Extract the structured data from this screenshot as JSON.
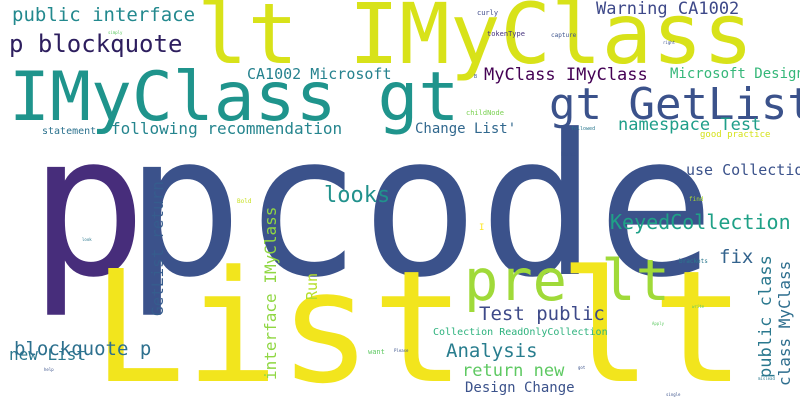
{
  "colors": {
    "background": "#ffffff",
    "palette": [
      "#440154",
      "#3b528b",
      "#21918c",
      "#5ec962",
      "#fde725"
    ]
  },
  "words": [
    {
      "text": "pcode",
      "color": "#3b528b"
    },
    {
      "text": "p",
      "color": "#472d7b"
    },
    {
      "text": "List lt",
      "color": "#f2e51d"
    },
    {
      "text": "lt IMyClass",
      "color": "#d8e219"
    },
    {
      "text": "IMyClass gt",
      "color": "#1f948c"
    },
    {
      "text": "gt GetList",
      "color": "#3b528b"
    },
    {
      "text": "pre lt",
      "color": "#a0da39"
    },
    {
      "text": "p blockquote",
      "color": "#2d1e5e"
    },
    {
      "text": "public interface",
      "color": "#23898e"
    },
    {
      "text": "Warning CA1002",
      "color": "#3e4989"
    },
    {
      "text": "CA1002 Microsoft",
      "color": "#26828e"
    },
    {
      "text": "MyClass IMyClass",
      "color": "#440154"
    },
    {
      "text": "Microsoft Design",
      "color": "#35b779"
    },
    {
      "text": "namespace Test",
      "color": "#1f9e89"
    },
    {
      "text": "following recommendation",
      "color": "#25858e"
    },
    {
      "text": "Change List'",
      "color": "#31688e"
    },
    {
      "text": "looks",
      "color": "#21918c"
    },
    {
      "text": "use Collection",
      "color": "#3b528b"
    },
    {
      "text": "KeyedCollection",
      "color": "#1fa187"
    },
    {
      "text": "fix",
      "color": "#33638d"
    },
    {
      "text": "Test public",
      "color": "#3e4a89"
    },
    {
      "text": "Analysis",
      "color": "#287d8e"
    },
    {
      "text": "return new",
      "color": "#5ec962"
    },
    {
      "text": "new List",
      "color": "#2a788e"
    },
    {
      "text": "Design Change",
      "color": "#3b528b"
    },
    {
      "text": "Collection ReadOnlyCollection",
      "color": "#2db27d"
    },
    {
      "text": "good practice",
      "color": "#d5e21a"
    },
    {
      "text": "blockquote p",
      "color": "#2d708e"
    },
    {
      "text": "GetList return",
      "color": "#365c8d"
    },
    {
      "text": "interface IMyClass",
      "color": "#90d743"
    },
    {
      "text": "Run",
      "color": "#b5de2b"
    },
    {
      "text": "public class",
      "color": "#2a788e"
    },
    {
      "text": "class MyClass",
      "color": "#2e6e8e"
    },
    {
      "text": "statement",
      "color": "#2c728e"
    },
    {
      "text": "curly",
      "color": "#3e4a89"
    },
    {
      "text": "capture",
      "color": "#3b528b"
    },
    {
      "text": "tokenType",
      "color": "#46337e"
    },
    {
      "text": "childNode",
      "color": "#7ad151"
    },
    {
      "text": "followed",
      "color": "#2a788e"
    },
    {
      "text": "Name",
      "color": "#3b528b"
    },
    {
      "text": "brackets",
      "color": "#2a788e"
    },
    {
      "text": "want",
      "color": "#5ec962"
    },
    {
      "text": "Bold",
      "color": "#c8e020"
    },
    {
      "text": "find",
      "color": "#addc30"
    },
    {
      "text": "Please",
      "color": "#3b528b"
    },
    {
      "text": "single",
      "color": "#3b528b"
    },
    {
      "text": "mislead",
      "color": "#2a788e"
    },
    {
      "text": "help",
      "color": "#3b528b"
    },
    {
      "text": "look",
      "color": "#2a788e"
    },
    {
      "text": "Apply",
      "color": "#5ec962"
    },
    {
      "text": "simply",
      "color": "#5ec962"
    },
    {
      "text": "write",
      "color": "#5ec962"
    },
    {
      "text": "right",
      "color": "#3b528b"
    },
    {
      "text": "got",
      "color": "#3b528b"
    },
    {
      "text": "B",
      "color": "#3b528b"
    },
    {
      "text": "I",
      "color": "#fde725"
    }
  ]
}
